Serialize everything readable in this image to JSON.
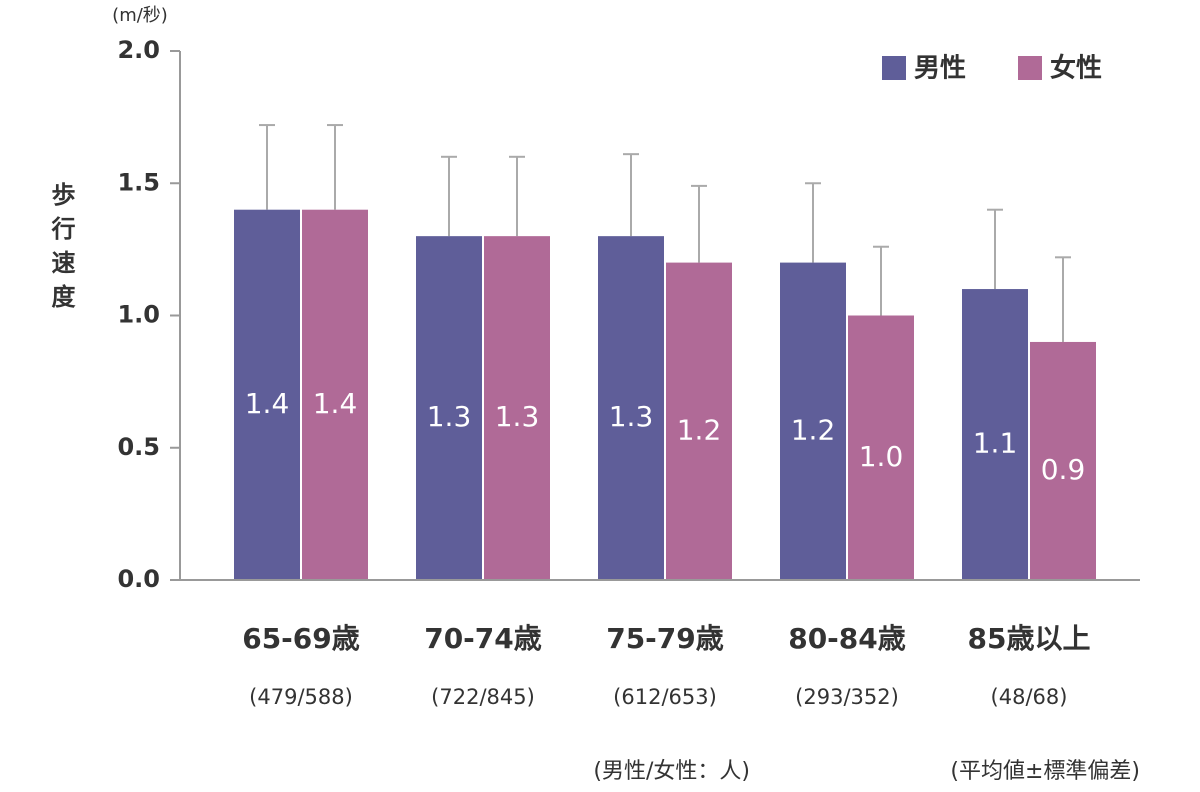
{
  "chart_data": {
    "type": "bar",
    "unit_label": "(m/秒)",
    "y_label": "歩行速度",
    "categories": [
      "65-69歳",
      "70-74歳",
      "75-79歳",
      "80-84歳",
      "85歳以上"
    ],
    "sample_sizes": [
      "(479/588)",
      "(722/845)",
      "(612/653)",
      "(293/352)",
      "(48/68)"
    ],
    "series": [
      {
        "name": "男性",
        "color": "#5f5e99",
        "values": [
          1.4,
          1.3,
          1.3,
          1.2,
          1.1
        ],
        "value_labels": [
          "1.4",
          "1.3",
          "1.3",
          "1.2",
          "1.1"
        ],
        "errors": [
          0.32,
          0.3,
          0.31,
          0.3,
          0.3
        ]
      },
      {
        "name": "女性",
        "color": "#b06a97",
        "values": [
          1.4,
          1.3,
          1.2,
          1.0,
          0.9
        ],
        "value_labels": [
          "1.4",
          "1.3",
          "1.2",
          "1.0",
          "0.9"
        ],
        "errors": [
          0.32,
          0.3,
          0.29,
          0.26,
          0.32
        ]
      }
    ],
    "ylim": [
      0,
      2
    ],
    "yticks": [
      {
        "value": 0,
        "label": "0.0"
      },
      0.5,
      {
        "value": 1,
        "label": "1.0"
      },
      1.5,
      {
        "value": 2,
        "label": "2.0"
      }
    ],
    "error_bar_color": "#aaaaaa",
    "legend": "top-right",
    "notes": [
      "(男性/女性：人)",
      "(平均値±標準偏差)"
    ]
  }
}
